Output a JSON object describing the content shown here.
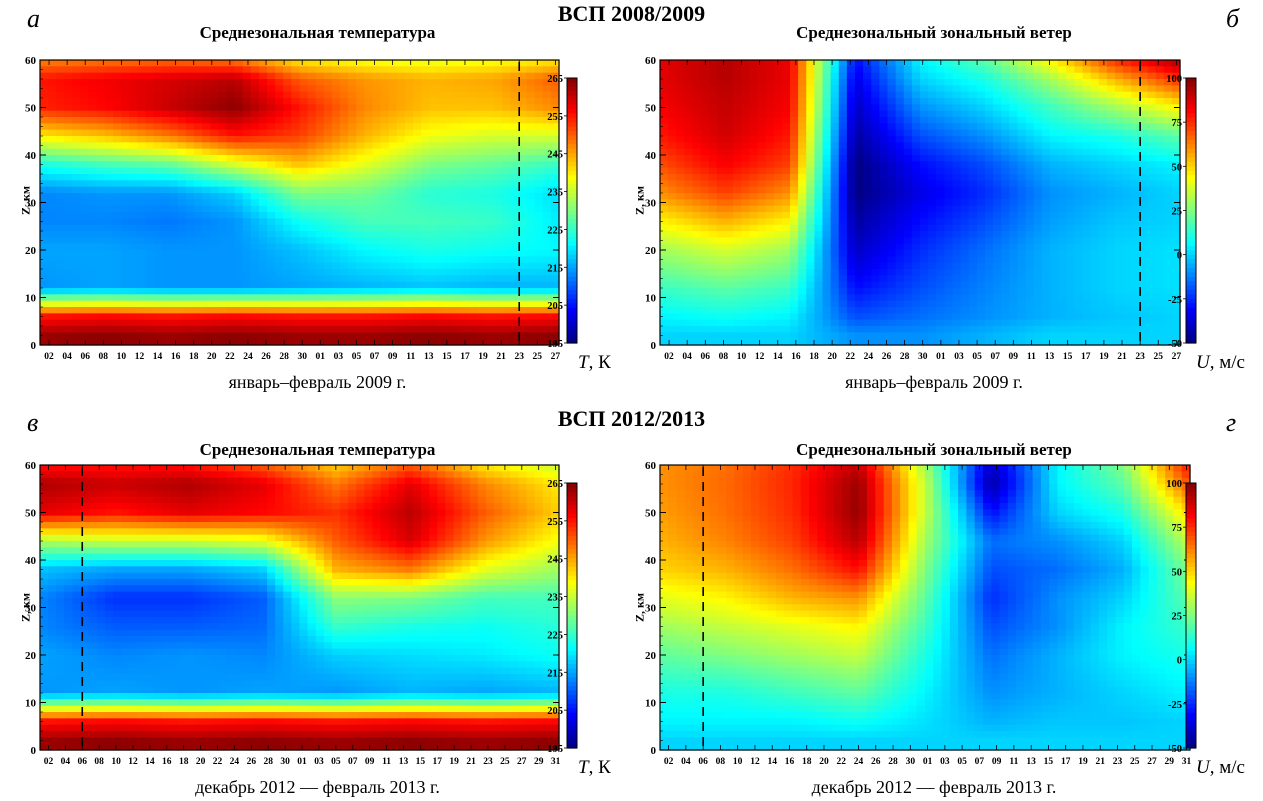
{
  "letters": [
    "а",
    "б",
    "в",
    "г"
  ],
  "rows": [
    {
      "title": "ВСП 2008/2009",
      "xcaption": "январь–февраль 2009 г."
    },
    {
      "title": "ВСП 2012/2013",
      "xcaption": "декабрь 2012 — февраль 2013 г."
    }
  ],
  "colorbars": {
    "temperature": {
      "ticks": [
        "265",
        "255",
        "245",
        "235",
        "225",
        "215",
        "205",
        "195"
      ],
      "unit_symbol": "T",
      "unit": ", К",
      "range": [
        195,
        265
      ]
    },
    "wind": {
      "ticks": [
        "100",
        "75",
        "50",
        "25",
        "0",
        "-25",
        "-50"
      ],
      "unit_symbol": "U",
      "unit": ", м/с",
      "range": [
        -50,
        100
      ]
    }
  },
  "chart_data": [
    {
      "type": "heatmap",
      "title": "Среднезональная температура",
      "ylabel": "Z, км",
      "xlabel": "январь–февраль 2009 г.",
      "ylim": [
        0,
        60
      ],
      "yticks": [
        0,
        10,
        20,
        30,
        40,
        50,
        60
      ],
      "xticks": [
        "02",
        "04",
        "06",
        "08",
        "10",
        "12",
        "14",
        "16",
        "18",
        "20",
        "22",
        "24",
        "26",
        "28",
        "30",
        "01",
        "03",
        "05",
        "07",
        "09",
        "11",
        "13",
        "15",
        "17",
        "19",
        "21",
        "23",
        "25",
        "27"
      ],
      "marker_date": "23",
      "colorbar": "temperature",
      "z_levels": [
        2,
        6,
        12,
        20,
        26,
        32,
        38,
        44,
        50,
        56,
        60
      ],
      "values": [
        [
          263,
          255,
          214,
          215,
          213,
          213,
          223,
          240,
          254,
          255,
          247
        ],
        [
          264,
          256,
          215,
          215,
          213,
          214,
          226,
          243,
          256,
          257,
          248
        ],
        [
          263,
          255,
          214,
          214,
          212,
          214,
          228,
          248,
          260,
          259,
          249
        ],
        [
          264,
          256,
          214,
          214,
          214,
          218,
          236,
          255,
          264,
          261,
          248
        ],
        [
          263,
          255,
          215,
          217,
          222,
          230,
          243,
          252,
          255,
          250,
          240
        ],
        [
          263,
          255,
          216,
          221,
          226,
          229,
          237,
          244,
          247,
          246,
          238
        ],
        [
          264,
          256,
          217,
          223,
          226,
          224,
          230,
          238,
          243,
          244,
          237
        ],
        [
          263,
          255,
          216,
          222,
          225,
          223,
          228,
          236,
          243,
          245,
          238
        ],
        [
          264,
          256,
          216,
          221,
          220,
          219,
          225,
          236,
          247,
          250,
          240
        ]
      ]
    },
    {
      "type": "heatmap",
      "title": "Среднезональный зональный ветер",
      "ylabel": "Z, км",
      "xlabel": "январь–февраль 2009 г.",
      "ylim": [
        0,
        60
      ],
      "yticks": [
        0,
        10,
        20,
        30,
        40,
        50,
        60
      ],
      "xticks": [
        "02",
        "04",
        "06",
        "08",
        "10",
        "12",
        "14",
        "16",
        "18",
        "20",
        "22",
        "24",
        "26",
        "28",
        "30",
        "01",
        "03",
        "05",
        "07",
        "09",
        "11",
        "13",
        "15",
        "17",
        "19",
        "21",
        "23",
        "25",
        "27"
      ],
      "marker_date": "23",
      "colorbar": "wind",
      "z_levels": [
        2,
        6,
        12,
        20,
        26,
        32,
        38,
        44,
        50,
        56,
        60
      ],
      "values": [
        [
          0,
          5,
          15,
          30,
          45,
          60,
          70,
          78,
          82,
          85,
          85
        ],
        [
          0,
          8,
          20,
          38,
          55,
          72,
          82,
          88,
          90,
          92,
          92
        ],
        [
          0,
          5,
          15,
          30,
          45,
          60,
          72,
          78,
          82,
          84,
          84
        ],
        [
          -10,
          -20,
          -30,
          -40,
          -45,
          -50,
          -50,
          -45,
          -40,
          -35,
          -30
        ],
        [
          -10,
          -15,
          -20,
          -25,
          -30,
          -35,
          -30,
          -20,
          -10,
          0,
          5
        ],
        [
          -5,
          -10,
          -12,
          -15,
          -20,
          -25,
          -20,
          -10,
          0,
          10,
          20
        ],
        [
          0,
          -5,
          -5,
          -5,
          -8,
          -10,
          -5,
          5,
          15,
          30,
          45
        ],
        [
          0,
          -2,
          0,
          0,
          -2,
          -5,
          0,
          10,
          30,
          55,
          75
        ],
        [
          0,
          0,
          2,
          2,
          0,
          0,
          5,
          20,
          45,
          75,
          95
        ]
      ]
    },
    {
      "type": "heatmap",
      "title": "Среднезональная температура",
      "ylabel": "Z, км",
      "xlabel": "декабрь 2012 — февраль 2013 г.",
      "ylim": [
        0,
        60
      ],
      "yticks": [
        0,
        10,
        20,
        30,
        40,
        50,
        60
      ],
      "xticks": [
        "02",
        "04",
        "06",
        "08",
        "10",
        "12",
        "14",
        "16",
        "18",
        "20",
        "22",
        "24",
        "26",
        "28",
        "30",
        "01",
        "03",
        "05",
        "07",
        "09",
        "11",
        "13",
        "15",
        "17",
        "19",
        "21",
        "23",
        "25",
        "27",
        "29",
        "31"
      ],
      "marker_date": "06",
      "colorbar": "temperature",
      "z_levels": [
        2,
        6,
        12,
        20,
        26,
        32,
        38,
        44,
        50,
        56,
        60
      ],
      "values": [
        [
          263,
          255,
          214,
          215,
          213,
          213,
          217,
          233,
          258,
          262,
          255
        ],
        [
          264,
          256,
          215,
          213,
          210,
          207,
          215,
          235,
          255,
          260,
          255
        ],
        [
          263,
          255,
          214,
          214,
          210,
          207,
          215,
          235,
          258,
          262,
          255
        ],
        [
          264,
          256,
          215,
          213,
          211,
          210,
          218,
          237,
          256,
          258,
          250
        ],
        [
          263,
          255,
          214,
          218,
          225,
          231,
          244,
          250,
          253,
          248,
          242
        ],
        [
          264,
          256,
          216,
          219,
          223,
          230,
          248,
          259,
          261,
          258,
          250
        ],
        [
          263,
          255,
          215,
          220,
          222,
          226,
          237,
          246,
          250,
          247,
          240
        ],
        [
          264,
          256,
          216,
          222,
          224,
          226,
          232,
          238,
          242,
          240,
          235
        ]
      ]
    },
    {
      "type": "heatmap",
      "title": "Среднезональный зональный ветер",
      "ylabel": "Z, км",
      "xlabel": "декабрь 2012 — февраль 2013 г.",
      "ylim": [
        0,
        60
      ],
      "yticks": [
        0,
        10,
        20,
        30,
        40,
        50,
        60
      ],
      "xticks": [
        "02",
        "04",
        "06",
        "08",
        "10",
        "12",
        "14",
        "16",
        "18",
        "20",
        "22",
        "24",
        "26",
        "28",
        "30",
        "01",
        "03",
        "05",
        "07",
        "09",
        "11",
        "13",
        "15",
        "17",
        "19",
        "21",
        "23",
        "25",
        "27",
        "29",
        "31"
      ],
      "marker_date": "06",
      "colorbar": "wind",
      "z_levels": [
        2,
        6,
        12,
        20,
        26,
        32,
        38,
        44,
        50,
        56,
        60
      ],
      "values": [
        [
          0,
          5,
          10,
          20,
          30,
          40,
          50,
          55,
          58,
          60,
          60
        ],
        [
          0,
          5,
          10,
          25,
          35,
          45,
          55,
          62,
          65,
          66,
          65
        ],
        [
          0,
          5,
          15,
          30,
          40,
          55,
          65,
          72,
          75,
          76,
          75
        ],
        [
          0,
          8,
          20,
          35,
          45,
          60,
          80,
          92,
          97,
          96,
          90
        ],
        [
          0,
          2,
          5,
          10,
          15,
          20,
          25,
          30,
          35,
          35,
          30
        ],
        [
          0,
          -5,
          -10,
          -15,
          -20,
          -25,
          -20,
          -15,
          -30,
          -45,
          -40
        ],
        [
          0,
          -2,
          -5,
          -5,
          -10,
          -10,
          -15,
          -10,
          0,
          5,
          5
        ],
        [
          0,
          -2,
          0,
          5,
          5,
          0,
          -5,
          0,
          10,
          20,
          25
        ],
        [
          0,
          0,
          5,
          10,
          15,
          20,
          25,
          35,
          50,
          70,
          80
        ]
      ]
    }
  ]
}
